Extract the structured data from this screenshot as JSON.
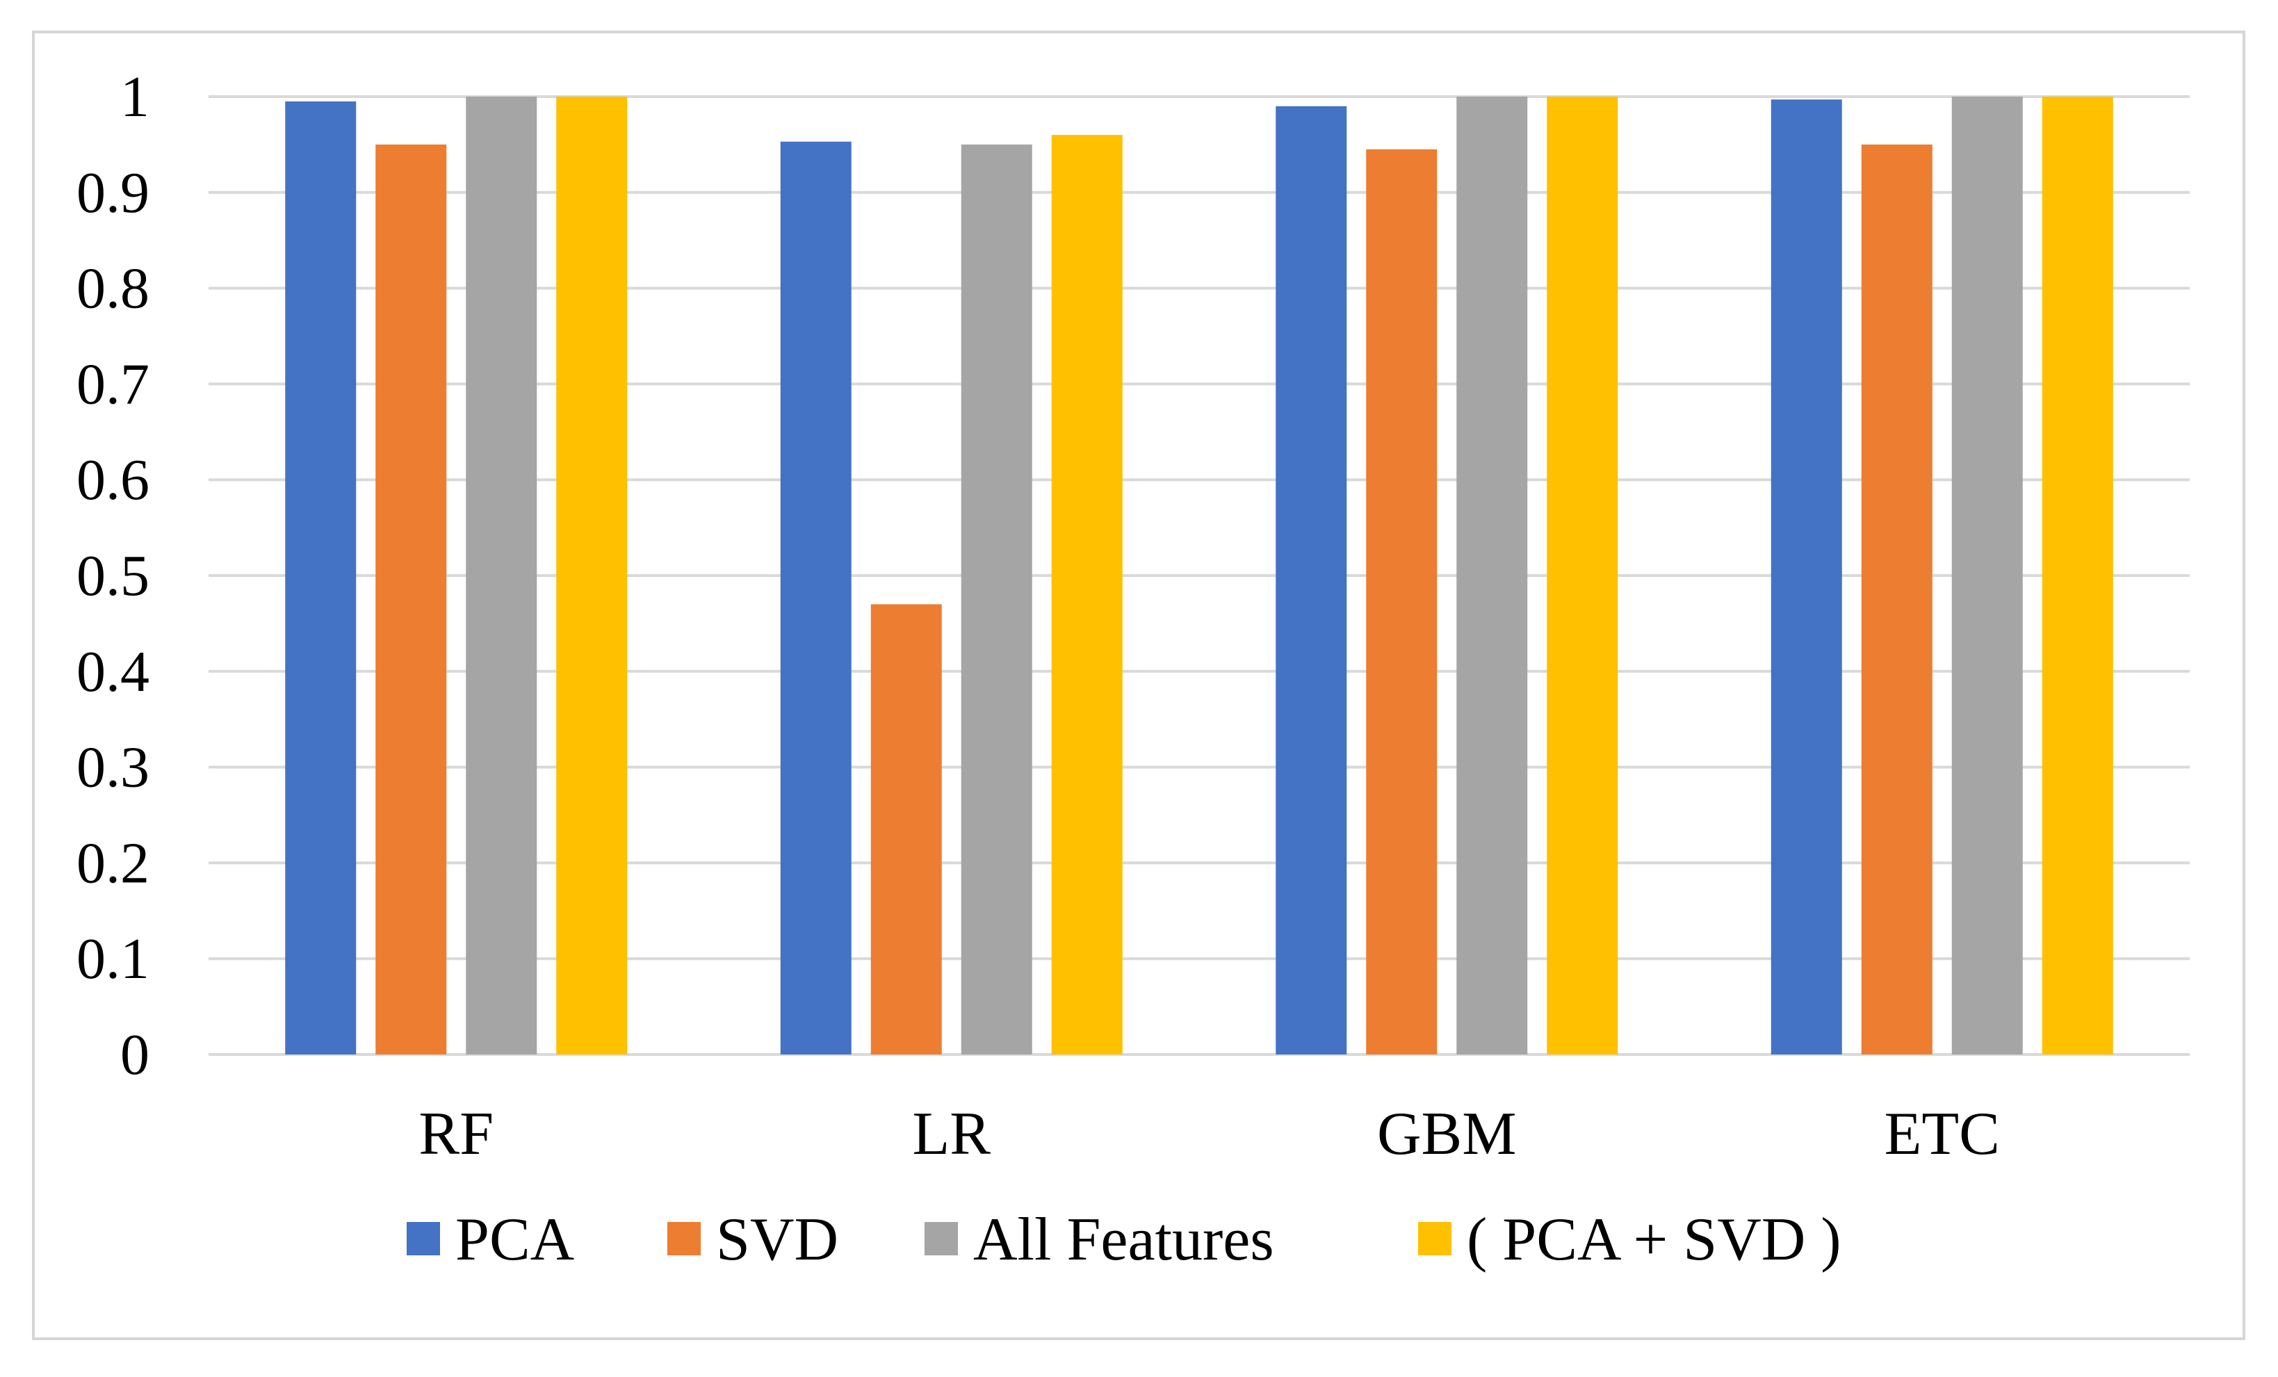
{
  "chart_data": {
    "type": "bar",
    "title": "",
    "xlabel": "",
    "ylabel": "",
    "ylim": [
      0,
      1
    ],
    "yticks": [
      "0",
      "0.1",
      "0.2",
      "0.3",
      "0.4",
      "0.5",
      "0.6",
      "0.7",
      "0.8",
      "0.9",
      "1"
    ],
    "categories": [
      "RF",
      "LR",
      "GBM",
      "ETC"
    ],
    "grid": true,
    "legend_position": "bottom",
    "series": [
      {
        "name": "PCA",
        "color": "#4472C4",
        "values": [
          0.995,
          0.953,
          0.99,
          0.997
        ]
      },
      {
        "name": "SVD",
        "color": "#ED7D31",
        "values": [
          0.95,
          0.47,
          0.945,
          0.95
        ]
      },
      {
        "name": "All Features",
        "color": "#A5A5A5",
        "values": [
          1.0,
          0.95,
          1.0,
          1.0
        ]
      },
      {
        "name": "( PCA + SVD )",
        "color": "#FFC000",
        "values": [
          1.0,
          0.96,
          1.0,
          1.0
        ]
      }
    ],
    "colors": {
      "gridline": "#d9d9d9",
      "frame": "#d6d6d6"
    }
  }
}
